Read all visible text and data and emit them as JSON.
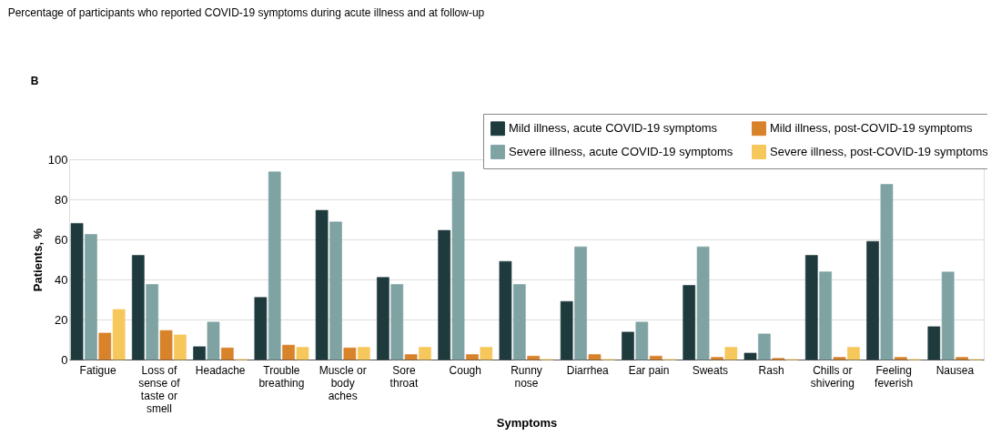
{
  "chart_data": {
    "type": "bar",
    "title": "Percentage of participants who reported COVID-19 symptoms during acute illness and at follow-up",
    "annotations": [
      "B"
    ],
    "xlabel": "Symptoms",
    "ylabel": "Patients, %",
    "categories": [
      "Fatigue",
      "Loss of sense of taste or smell",
      "Headache",
      "Trouble breathing",
      "Muscle or body aches",
      "Sore throat",
      "Cough",
      "Runny nose",
      "Diarrhea",
      "Ear pain",
      "Sweats",
      "Rash",
      "Chills or shivering",
      "Feeling feverish",
      "Nausea"
    ],
    "series": [
      {
        "name": "Mild illness, acute COVID-19 symptoms",
        "color": "#1f3a3d",
        "values": [
          68,
          52,
          6.4,
          31,
          74.5,
          41,
          64.5,
          49,
          29,
          13.7,
          37,
          3.2,
          52,
          59,
          16.4
        ]
      },
      {
        "name": "Severe illness, acute COVID-19 symptoms",
        "color": "#7fa3a3",
        "values": [
          62.5,
          37.5,
          18.7,
          93.7,
          68.7,
          37.5,
          93.7,
          37.5,
          56.3,
          18.7,
          56.3,
          12.8,
          43.8,
          87.5,
          43.7
        ]
      },
      {
        "name": "Mild illness, post-COVID-19 symptoms",
        "color": "#d8822a",
        "values": [
          13.2,
          14.5,
          5.8,
          7.2,
          5.8,
          2.5,
          2.5,
          1.7,
          2.5,
          1.7,
          1.1,
          0.6,
          1.1,
          1.1,
          1.1
        ]
      },
      {
        "name": "Severe illness, post-COVID-19 symptoms",
        "color": "#f6c75a",
        "values": [
          25,
          12.3,
          0,
          6.1,
          6.1,
          6.1,
          6.1,
          0,
          0,
          0,
          6.1,
          0,
          6.1,
          0,
          0
        ]
      }
    ],
    "ylim": [
      0,
      100
    ],
    "yticks": [
      0,
      20,
      40,
      60,
      80,
      100
    ],
    "grid": "y",
    "legend": "top right"
  }
}
